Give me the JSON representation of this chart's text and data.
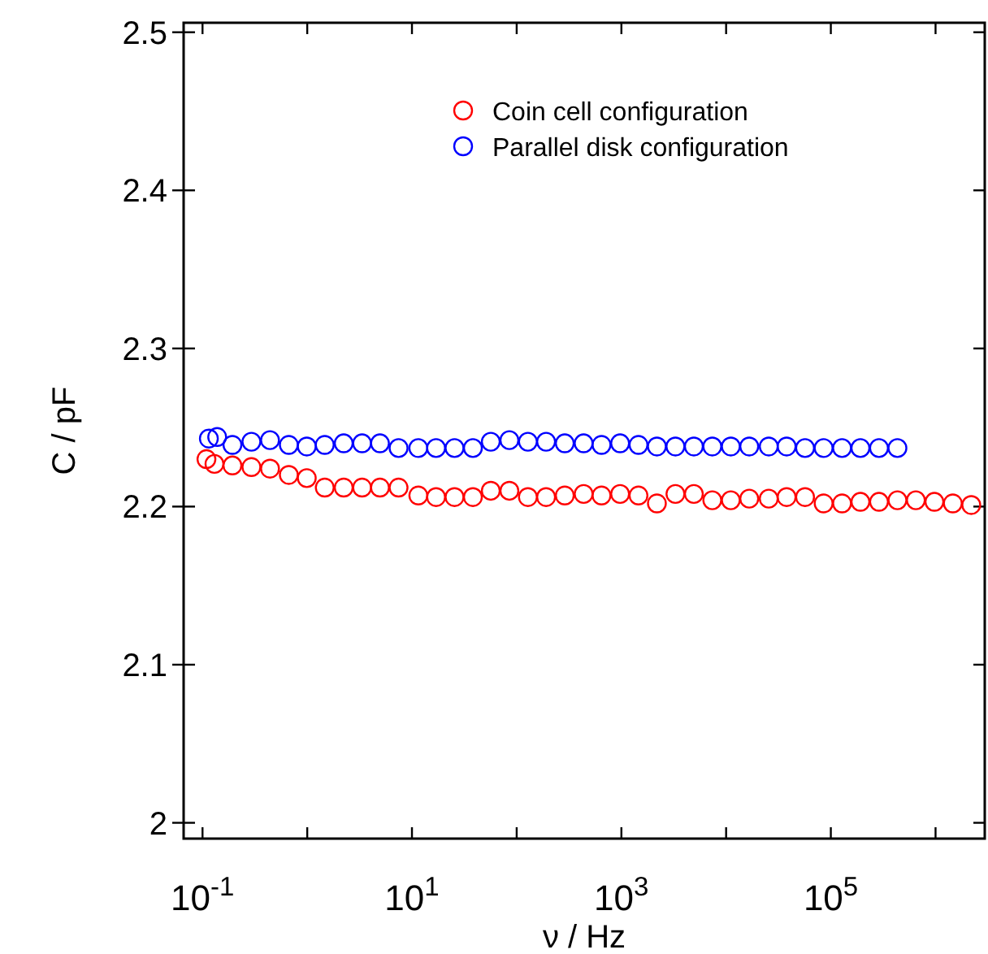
{
  "chart_data": {
    "type": "scatter",
    "xlabel": "ν / Hz",
    "ylabel": "C / pF",
    "log": "x",
    "xlim": [
      0.066,
      2950000
    ],
    "ylim": [
      1.99,
      2.506
    ],
    "xticks": [
      {
        "value": 0.1,
        "label": "10$^{-1}$"
      },
      {
        "value": 1,
        "label": null
      },
      {
        "value": 10,
        "label": "10$^{1}$"
      },
      {
        "value": 100,
        "label": null
      },
      {
        "value": 1000,
        "label": "10$^{3}$"
      },
      {
        "value": 10000,
        "label": null
      },
      {
        "value": 100000,
        "label": "10$^{5}$"
      },
      {
        "value": 1000000,
        "label": null
      }
    ],
    "yticks": [
      2,
      2.1,
      2.2,
      2.3,
      2.4,
      2.5
    ],
    "grid": false,
    "legend": "top right",
    "marker": "circle",
    "series": [
      {
        "name": "Coin cell configuration",
        "color": "#ff0000",
        "x": [
          0.109,
          0.13,
          0.193,
          0.293,
          0.441,
          0.667,
          0.99,
          1.47,
          2.23,
          3.34,
          4.95,
          7.45,
          11.5,
          17,
          25.5,
          38.2,
          56.6,
          85.2,
          128,
          191,
          288,
          436,
          646,
          972,
          1456,
          2183,
          3281,
          4920,
          7380,
          11090,
          16630,
          25540,
          37840,
          56750,
          85340,
          128000,
          191700,
          288400,
          432500,
          648600,
          975000,
          1462000,
          2193000
        ],
        "values": [
          2.23,
          2.227,
          2.226,
          2.225,
          2.224,
          2.22,
          2.218,
          2.212,
          2.212,
          2.212,
          2.212,
          2.212,
          2.207,
          2.206,
          2.206,
          2.206,
          2.21,
          2.21,
          2.206,
          2.206,
          2.207,
          2.208,
          2.207,
          2.208,
          2.207,
          2.202,
          2.208,
          2.208,
          2.204,
          2.204,
          2.205,
          2.205,
          2.206,
          2.206,
          2.202,
          2.202,
          2.203,
          2.203,
          2.204,
          2.204,
          2.203,
          2.202,
          2.201
        ]
      },
      {
        "name": "Parallel disk configuration",
        "color": "#0000ff",
        "x": [
          0.115,
          0.138,
          0.193,
          0.293,
          0.441,
          0.667,
          0.99,
          1.47,
          2.23,
          3.34,
          4.95,
          7.45,
          11.5,
          17,
          25.5,
          38.2,
          56.6,
          85.2,
          128,
          191,
          288,
          436,
          646,
          972,
          1456,
          2183,
          3281,
          4920,
          7380,
          11090,
          16630,
          25540,
          37840,
          56750,
          85340,
          128000,
          191700,
          288400,
          432500
        ],
        "values": [
          2.243,
          2.244,
          2.239,
          2.241,
          2.242,
          2.239,
          2.238,
          2.239,
          2.24,
          2.24,
          2.24,
          2.237,
          2.237,
          2.237,
          2.237,
          2.237,
          2.241,
          2.242,
          2.241,
          2.241,
          2.24,
          2.24,
          2.239,
          2.24,
          2.239,
          2.238,
          2.238,
          2.238,
          2.238,
          2.238,
          2.238,
          2.238,
          2.238,
          2.237,
          2.237,
          2.237,
          2.237,
          2.237,
          2.237
        ]
      }
    ]
  }
}
